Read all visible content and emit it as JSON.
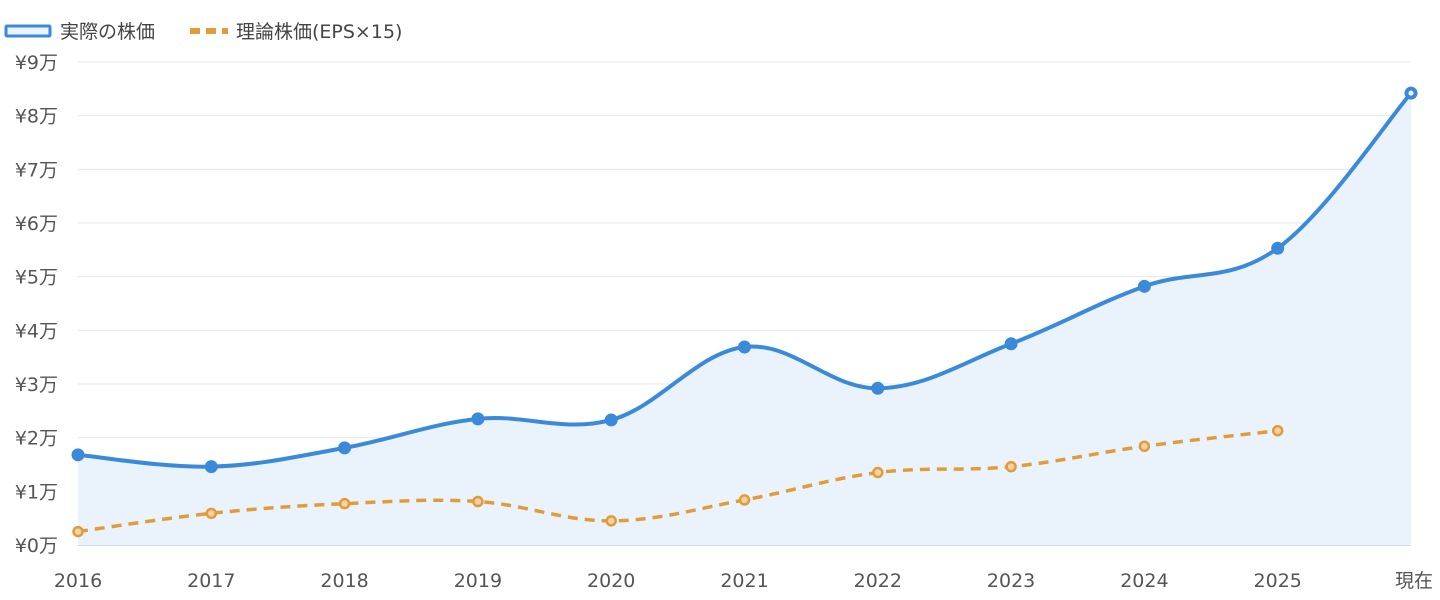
{
  "chart_data": {
    "type": "line",
    "categories": [
      "2016",
      "2017",
      "2018",
      "2019",
      "2020",
      "2021",
      "2022",
      "2023",
      "2024",
      "2025",
      "現在"
    ],
    "y_tick_labels": [
      "¥0万",
      "¥1万",
      "¥2万",
      "¥3万",
      "¥4万",
      "¥5万",
      "¥6万",
      "¥7万",
      "¥8万",
      "¥9万"
    ],
    "ylim": [
      0,
      90000
    ],
    "grid": true,
    "legend_position": "top-left",
    "series": [
      {
        "name": "実際の株価",
        "color": "#3b8ad9",
        "fill": "#eaf3fc",
        "style": "solid",
        "values": [
          16800,
          14600,
          18100,
          23500,
          23300,
          36900,
          29200,
          37500,
          48200,
          55300,
          84200
        ]
      },
      {
        "name": "理論株価(EPS×15)",
        "color": "#e09c3a",
        "style": "dashed",
        "values": [
          2500,
          5900,
          7700,
          8100,
          4500,
          8400,
          13500,
          14600,
          18400,
          21300,
          null
        ]
      }
    ]
  }
}
